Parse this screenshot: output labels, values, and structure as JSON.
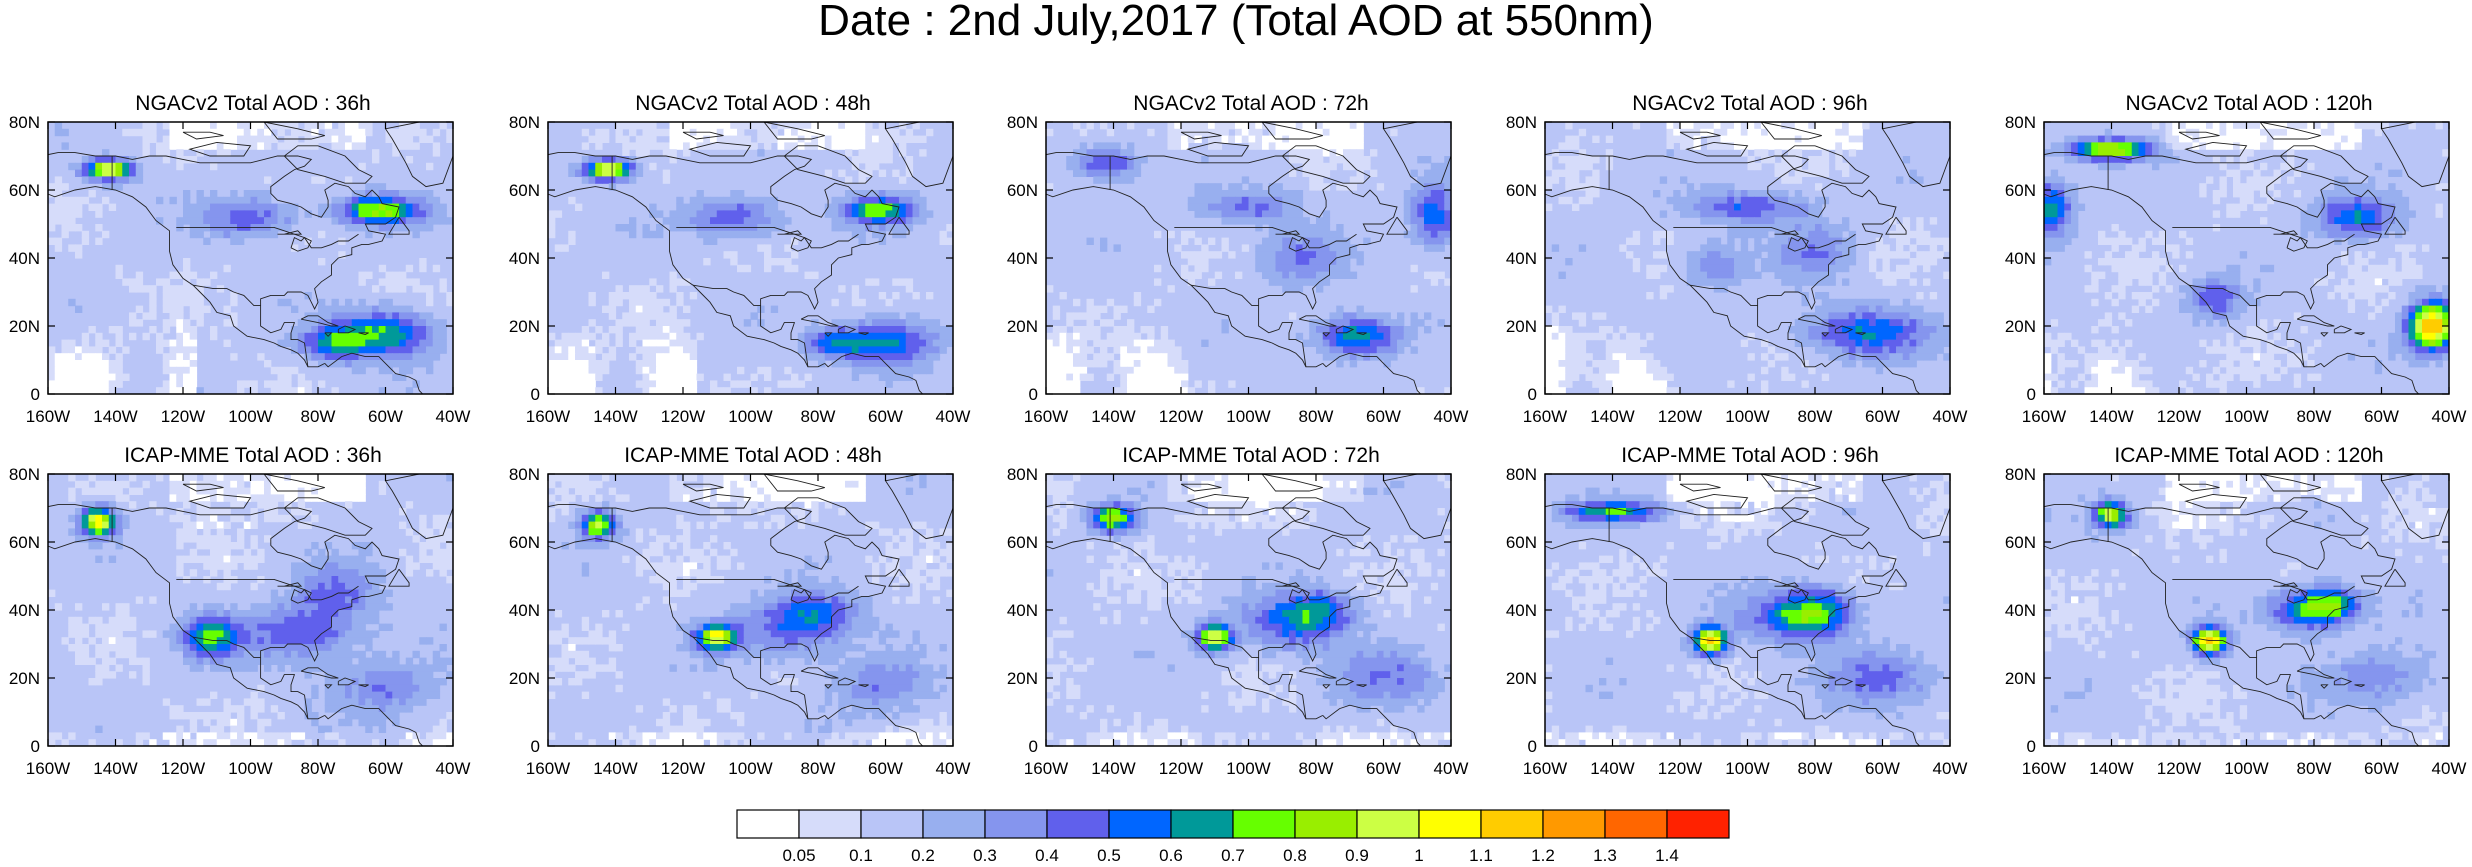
{
  "title": "Date : 2nd July,2017 (Total AOD at 550nm)",
  "panels": [
    {
      "title": "NGACv2 Total AOD : 36h"
    },
    {
      "title": "NGACv2 Total AOD : 48h"
    },
    {
      "title": "NGACv2 Total AOD : 72h"
    },
    {
      "title": "NGACv2 Total AOD : 96h"
    },
    {
      "title": "NGACv2 Total AOD : 120h"
    },
    {
      "title": "ICAP-MME Total AOD : 36h"
    },
    {
      "title": "ICAP-MME Total AOD : 48h"
    },
    {
      "title": "ICAP-MME Total AOD : 72h"
    },
    {
      "title": "ICAP-MME Total AOD : 96h"
    },
    {
      "title": "ICAP-MME Total AOD : 120h"
    }
  ],
  "lon_ticks": [
    "160W",
    "140W",
    "120W",
    "100W",
    "80W",
    "60W",
    "40W"
  ],
  "lat_ticks": [
    "0",
    "20N",
    "40N",
    "60N",
    "80N"
  ],
  "colorbar": {
    "labels": [
      "0.05",
      "0.1",
      "0.2",
      "0.3",
      "0.4",
      "0.5",
      "0.6",
      "0.7",
      "0.8",
      "0.9",
      "1",
      "1.1",
      "1.2",
      "1.3",
      "1.4"
    ],
    "colors": [
      "#ffffff",
      "#d6dcfa",
      "#b9c5f7",
      "#98afef",
      "#8595ee",
      "#6060ec",
      "#0066ff",
      "#009999",
      "#66ff00",
      "#99ee00",
      "#ccff44",
      "#ffff00",
      "#ffcc00",
      "#ff9900",
      "#ff6600",
      "#ff2200"
    ]
  }
}
